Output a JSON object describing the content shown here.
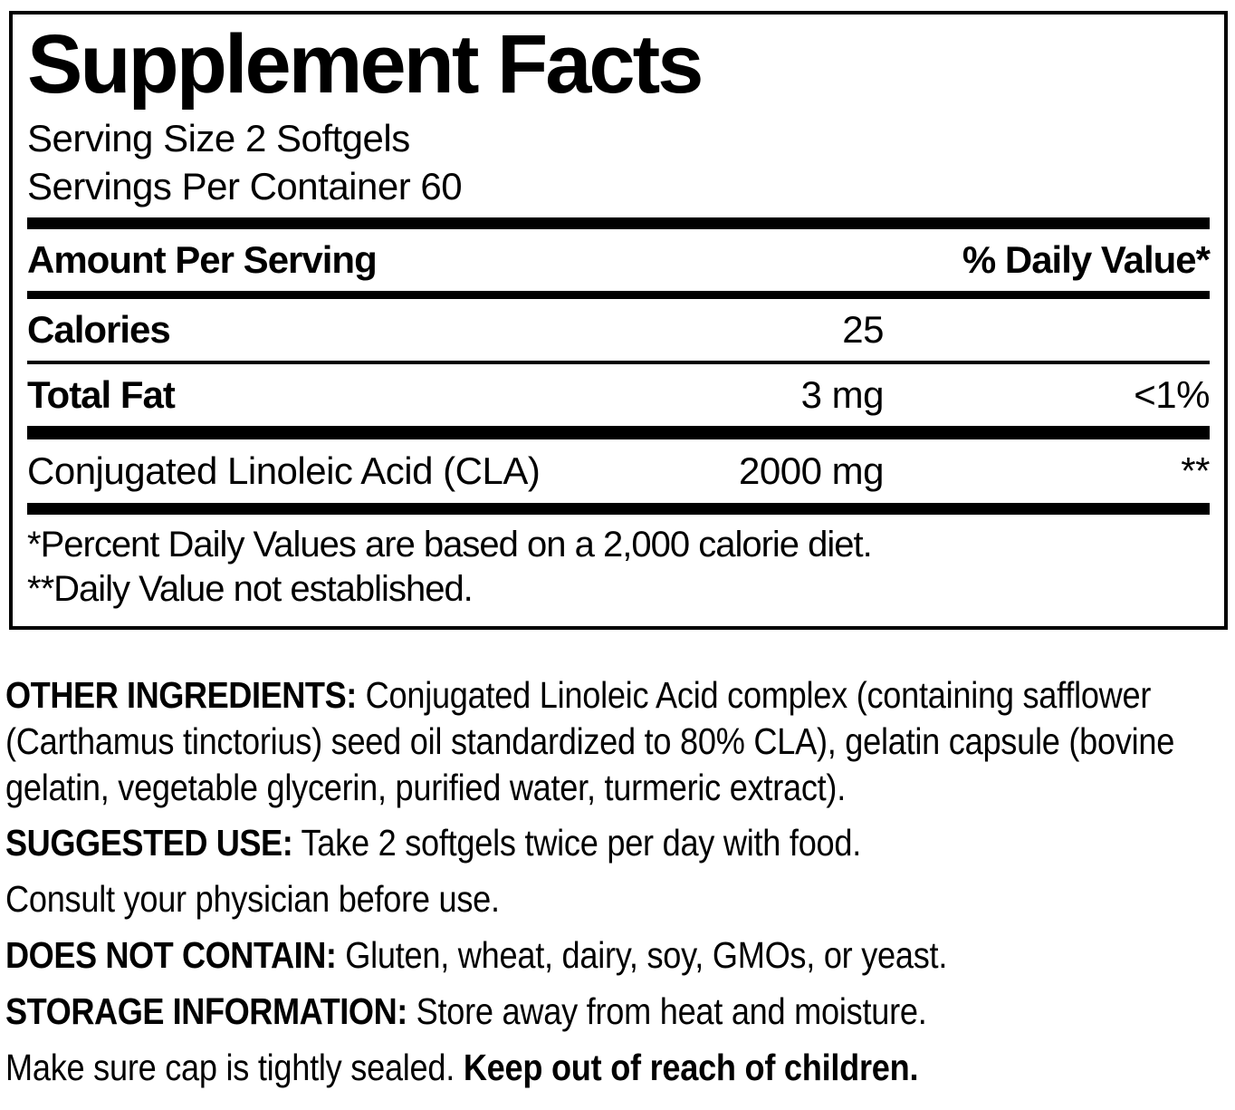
{
  "colors": {
    "ink": "#000000",
    "background": "#ffffff"
  },
  "panel": {
    "title": "Supplement Facts",
    "serving_size": "Serving Size 2 Softgels",
    "servings_per_container": "Servings Per Container 60",
    "header": {
      "amount": "Amount Per Serving",
      "daily_value": "% Daily Value*"
    },
    "rows": [
      {
        "name": "Calories",
        "amount": "25",
        "dv": ""
      },
      {
        "name": "Total Fat",
        "amount": "3 mg",
        "dv": "<1%"
      },
      {
        "name": "Conjugated Linoleic Acid (CLA)",
        "amount": "2000 mg",
        "dv": "**"
      }
    ],
    "footnotes": [
      "*Percent Daily Values are based on a 2,000 calorie diet.",
      "**Daily Value not established."
    ]
  },
  "info_sections": [
    {
      "label": "OTHER INGREDIENTS:",
      "text": "Conjugated Linoleic Acid complex (containing safflower (Carthamus tinctorius) seed oil standardized to 80% CLA), gelatin capsule (bovine gelatin, vegetable glycerin, purified water, turmeric extract)."
    },
    {
      "label": "SUGGESTED USE:",
      "text": "Take 2 softgels twice per day with food.",
      "text2": "Consult your physician before use."
    },
    {
      "label": "DOES NOT CONTAIN:",
      "text": "Gluten, wheat, dairy, soy, GMOs, or yeast."
    },
    {
      "label": "STORAGE INFORMATION:",
      "text": "Store away from heat and moisture.",
      "text2": "Make sure cap is tightly sealed. ",
      "bold_tail": "Keep out of reach of children."
    }
  ]
}
